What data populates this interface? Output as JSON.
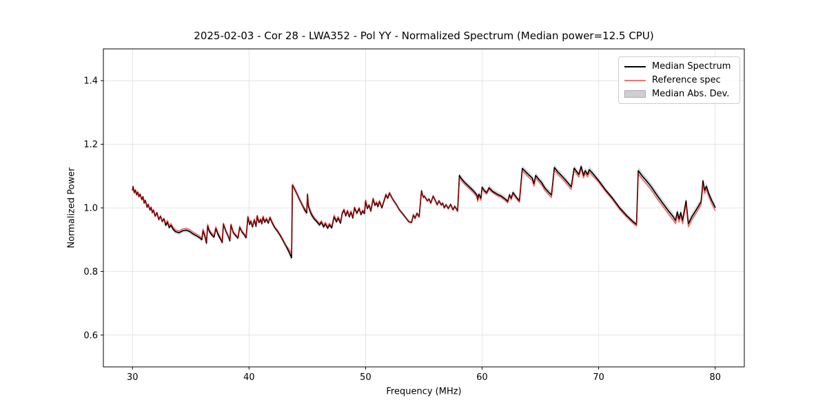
{
  "chart_data": {
    "type": "line",
    "title": "2025-02-03 - Cor 28 - LWA352 - Pol YY - Normalized Spectrum (Median power=12.5 CPU)",
    "xlabel": "Frequency (MHz)",
    "ylabel": "Normalized Power",
    "xlim": [
      27.5,
      82.5
    ],
    "ylim": [
      0.5,
      1.5
    ],
    "xticks": [
      30,
      40,
      50,
      60,
      70,
      80
    ],
    "yticks": [
      0.6,
      0.8,
      1.0,
      1.2,
      1.4
    ],
    "grid": true,
    "legend_position": "upper right",
    "colors": {
      "median_line": "#000000",
      "reference_line": "#ff0000",
      "reference_opacity": 0.55,
      "reference_legend": "#f4736f",
      "band_fill": "#aaaaaa",
      "band_opacity": 0.45,
      "band_legend": "#cfcfcf",
      "grid_line": "#e4e4e4",
      "spine": "#000000"
    },
    "series_meta": [
      {
        "name": "Median Spectrum",
        "kind": "line",
        "color": "#000000"
      },
      {
        "name": "Reference spec",
        "kind": "line",
        "color": "#f4736f"
      },
      {
        "name": "Median Abs. Dev.",
        "kind": "band",
        "color": "#cfcfcf"
      }
    ],
    "points_format": [
      "freq_mhz",
      "median_power",
      "reference_minus_median"
    ],
    "mad_halfwidth_default": 0.007,
    "mad_halfwidth_regions": [
      [
        43.4,
        45.4,
        0.011
      ],
      [
        58.0,
        63.4,
        0.009
      ],
      [
        63.4,
        69.6,
        0.01
      ],
      [
        69.6,
        73.3,
        0.008
      ],
      [
        73.3,
        80.0,
        0.012
      ]
    ],
    "points": [
      [
        30.0,
        1.056,
        0
      ],
      [
        30.05,
        1.067,
        0
      ],
      [
        30.15,
        1.048,
        0
      ],
      [
        30.25,
        1.056,
        0
      ],
      [
        30.35,
        1.041,
        0
      ],
      [
        30.45,
        1.05,
        0
      ],
      [
        30.55,
        1.035,
        0
      ],
      [
        30.65,
        1.043,
        0
      ],
      [
        30.8,
        1.026,
        0
      ],
      [
        30.9,
        1.035,
        0
      ],
      [
        31.0,
        1.015,
        0
      ],
      [
        31.1,
        1.024,
        0
      ],
      [
        31.25,
        1.002,
        0
      ],
      [
        31.35,
        1.011,
        0
      ],
      [
        31.5,
        0.993,
        0
      ],
      [
        31.6,
        1.002,
        0
      ],
      [
        31.7,
        0.985,
        0
      ],
      [
        31.8,
        0.993,
        0
      ],
      [
        31.95,
        0.974,
        0
      ],
      [
        32.1,
        0.985,
        0
      ],
      [
        32.25,
        0.963,
        0
      ],
      [
        32.4,
        0.974,
        0
      ],
      [
        32.55,
        0.957,
        0
      ],
      [
        32.7,
        0.966,
        0
      ],
      [
        32.85,
        0.945,
        0.006
      ],
      [
        33.0,
        0.955,
        0.006
      ],
      [
        33.15,
        0.938,
        0.006
      ],
      [
        33.3,
        0.945,
        0.006
      ],
      [
        33.5,
        0.932,
        0.006
      ],
      [
        33.7,
        0.925,
        0.006
      ],
      [
        34.0,
        0.922,
        0.006
      ],
      [
        34.3,
        0.928,
        0.006
      ],
      [
        34.6,
        0.93,
        0.006
      ],
      [
        34.9,
        0.926,
        0.006
      ],
      [
        35.2,
        0.918,
        0.006
      ],
      [
        35.5,
        0.912,
        0.006
      ],
      [
        35.8,
        0.905,
        0.006
      ],
      [
        35.95,
        0.9,
        0.006
      ],
      [
        36.05,
        0.928,
        0.006
      ],
      [
        36.2,
        0.912,
        0.006
      ],
      [
        36.35,
        0.889,
        0.006
      ],
      [
        36.45,
        0.943,
        0.006
      ],
      [
        36.6,
        0.925,
        0.006
      ],
      [
        36.8,
        0.915,
        0.006
      ],
      [
        37.0,
        0.908,
        0.006
      ],
      [
        37.15,
        0.935,
        0.006
      ],
      [
        37.35,
        0.915,
        0.006
      ],
      [
        37.55,
        0.902,
        0.006
      ],
      [
        37.7,
        0.891,
        0.003
      ],
      [
        37.8,
        0.949,
        0.003
      ],
      [
        38.0,
        0.928,
        0.003
      ],
      [
        38.2,
        0.912,
        0.003
      ],
      [
        38.35,
        0.896,
        0.003
      ],
      [
        38.45,
        0.946,
        0.003
      ],
      [
        38.65,
        0.922,
        0.003
      ],
      [
        38.85,
        0.913,
        0.003
      ],
      [
        39.05,
        0.905,
        0.003
      ],
      [
        39.2,
        0.939,
        0.003
      ],
      [
        39.4,
        0.924,
        0.003
      ],
      [
        39.6,
        0.915,
        0.003
      ],
      [
        39.75,
        0.906,
        0.003
      ],
      [
        39.9,
        0.971,
        0.003
      ],
      [
        40.05,
        0.948,
        0.003
      ],
      [
        40.15,
        0.958,
        0.003
      ],
      [
        40.3,
        0.94,
        0.003
      ],
      [
        40.45,
        0.962,
        0.003
      ],
      [
        40.6,
        0.942,
        0.003
      ],
      [
        40.7,
        0.974,
        0.003
      ],
      [
        40.85,
        0.954,
        0.003
      ],
      [
        41.0,
        0.963,
        0.003
      ],
      [
        41.1,
        0.95,
        0.003
      ],
      [
        41.2,
        0.971,
        0.003
      ],
      [
        41.35,
        0.955,
        0.003
      ],
      [
        41.5,
        0.965,
        0.003
      ],
      [
        41.65,
        0.952,
        0.003
      ],
      [
        41.8,
        0.969,
        0.003
      ],
      [
        42.0,
        0.952,
        0.003
      ],
      [
        42.2,
        0.938,
        0.003
      ],
      [
        42.45,
        0.926,
        0.003
      ],
      [
        42.7,
        0.912,
        0.003
      ],
      [
        42.95,
        0.895,
        0.003
      ],
      [
        43.2,
        0.878,
        0.003
      ],
      [
        43.45,
        0.86,
        0.01
      ],
      [
        43.65,
        0.843,
        0.012
      ],
      [
        43.72,
        1.072,
        0
      ],
      [
        43.9,
        1.06,
        0
      ],
      [
        44.1,
        1.045,
        0
      ],
      [
        44.35,
        1.025,
        0
      ],
      [
        44.6,
        1.007,
        0
      ],
      [
        44.8,
        0.992,
        0.005
      ],
      [
        44.95,
        0.984,
        0.005
      ],
      [
        45.02,
        1.043,
        0
      ],
      [
        45.1,
        1.005,
        0.005
      ],
      [
        45.25,
        0.988,
        0.005
      ],
      [
        45.4,
        0.976,
        0.005
      ],
      [
        45.6,
        0.965,
        0.005
      ],
      [
        45.85,
        0.955,
        0.005
      ],
      [
        46.05,
        0.946,
        0.005
      ],
      [
        46.2,
        0.955,
        0.005
      ],
      [
        46.4,
        0.94,
        0.005
      ],
      [
        46.55,
        0.95,
        0.005
      ],
      [
        46.75,
        0.936,
        0.005
      ],
      [
        46.9,
        0.947,
        0.005
      ],
      [
        47.1,
        0.937,
        0.005
      ],
      [
        47.3,
        0.972,
        0.005
      ],
      [
        47.5,
        0.956,
        0.005
      ],
      [
        47.65,
        0.968,
        0.005
      ],
      [
        47.85,
        0.952,
        0.005
      ],
      [
        48.0,
        0.983,
        0.003
      ],
      [
        48.15,
        0.993,
        0.003
      ],
      [
        48.3,
        0.975,
        0.003
      ],
      [
        48.45,
        0.99,
        0.003
      ],
      [
        48.6,
        0.972,
        0.003
      ],
      [
        48.75,
        0.987,
        0.003
      ],
      [
        48.9,
        0.968,
        0.003
      ],
      [
        49.05,
        1.0,
        0.003
      ],
      [
        49.25,
        0.983,
        0.003
      ],
      [
        49.45,
        0.998,
        0.003
      ],
      [
        49.6,
        0.979,
        0.003
      ],
      [
        49.75,
        0.99,
        0.003
      ],
      [
        49.9,
        0.982,
        0.003
      ],
      [
        50.0,
        1.022,
        0.003
      ],
      [
        50.15,
        0.998,
        0.003
      ],
      [
        50.3,
        1.008,
        0.003
      ],
      [
        50.45,
        0.99,
        0.003
      ],
      [
        50.65,
        1.028,
        0.003
      ],
      [
        50.8,
        1.008,
        0.003
      ],
      [
        50.95,
        1.016,
        0.003
      ],
      [
        51.05,
        1.004,
        0.003
      ],
      [
        51.2,
        1.02,
        0.003
      ],
      [
        51.4,
        1.0,
        0.003
      ],
      [
        51.75,
        1.041,
        0.003
      ],
      [
        51.9,
        1.03,
        0.003
      ],
      [
        52.05,
        1.046,
        0.003
      ],
      [
        52.35,
        1.026,
        0
      ],
      [
        52.65,
        1.01,
        0
      ],
      [
        52.9,
        0.994,
        0
      ],
      [
        53.3,
        0.976,
        0
      ],
      [
        53.7,
        0.957,
        0
      ],
      [
        53.95,
        0.954,
        0
      ],
      [
        54.1,
        0.978,
        0
      ],
      [
        54.25,
        0.967,
        0
      ],
      [
        54.4,
        0.983,
        0
      ],
      [
        54.6,
        0.972,
        0
      ],
      [
        54.8,
        1.054,
        0
      ],
      [
        54.95,
        1.033,
        0
      ],
      [
        55.05,
        1.037,
        0
      ],
      [
        55.3,
        1.022,
        0
      ],
      [
        55.45,
        1.028,
        0
      ],
      [
        55.6,
        1.015,
        0
      ],
      [
        55.8,
        1.037,
        0
      ],
      [
        56.0,
        1.022,
        0
      ],
      [
        56.15,
        1.01,
        0
      ],
      [
        56.3,
        1.022,
        0
      ],
      [
        56.5,
        1.009,
        0
      ],
      [
        56.62,
        1.015,
        0
      ],
      [
        56.75,
        1.0,
        0
      ],
      [
        56.9,
        1.01,
        0
      ],
      [
        57.1,
        0.998,
        0
      ],
      [
        57.3,
        1.011,
        0
      ],
      [
        57.5,
        0.994,
        0
      ],
      [
        57.65,
        1.005,
        0
      ],
      [
        57.9,
        0.99,
        0
      ],
      [
        58.05,
        1.102,
        -0.006
      ],
      [
        58.2,
        1.093,
        -0.006
      ],
      [
        58.5,
        1.08,
        -0.006
      ],
      [
        59.0,
        1.063,
        -0.006
      ],
      [
        59.3,
        1.052,
        -0.006
      ],
      [
        59.55,
        1.041,
        -0.006
      ],
      [
        59.62,
        1.026,
        -0.006
      ],
      [
        59.72,
        1.043,
        -0.006
      ],
      [
        59.9,
        1.03,
        -0.006
      ],
      [
        60.0,
        1.065,
        -0.004
      ],
      [
        60.2,
        1.054,
        -0.004
      ],
      [
        60.4,
        1.048,
        -0.004
      ],
      [
        60.6,
        1.063,
        -0.004
      ],
      [
        60.9,
        1.052,
        -0.004
      ],
      [
        61.3,
        1.043,
        -0.004
      ],
      [
        61.65,
        1.037,
        -0.004
      ],
      [
        62.05,
        1.026,
        -0.004
      ],
      [
        62.2,
        1.02,
        -0.004
      ],
      [
        62.35,
        1.041,
        -0.004
      ],
      [
        62.5,
        1.03,
        -0.004
      ],
      [
        62.65,
        1.048,
        -0.004
      ],
      [
        62.95,
        1.033,
        -0.004
      ],
      [
        63.2,
        1.022,
        -0.004
      ],
      [
        63.45,
        1.124,
        -0.008
      ],
      [
        63.7,
        1.115,
        -0.008
      ],
      [
        64.0,
        1.104,
        -0.008
      ],
      [
        64.3,
        1.094,
        -0.008
      ],
      [
        64.45,
        1.076,
        -0.008
      ],
      [
        64.6,
        1.102,
        -0.008
      ],
      [
        64.85,
        1.09,
        -0.008
      ],
      [
        65.1,
        1.08,
        -0.008
      ],
      [
        65.4,
        1.062,
        -0.008
      ],
      [
        65.7,
        1.05,
        -0.008
      ],
      [
        65.95,
        1.04,
        -0.008
      ],
      [
        66.2,
        1.127,
        -0.008
      ],
      [
        66.5,
        1.113,
        -0.008
      ],
      [
        66.8,
        1.102,
        -0.008
      ],
      [
        67.1,
        1.09,
        -0.008
      ],
      [
        67.4,
        1.077,
        -0.008
      ],
      [
        67.65,
        1.066,
        -0.008
      ],
      [
        67.9,
        1.125,
        -0.008
      ],
      [
        68.1,
        1.115,
        -0.008
      ],
      [
        68.3,
        1.105,
        -0.008
      ],
      [
        68.5,
        1.13,
        -0.008
      ],
      [
        68.7,
        1.102,
        -0.008
      ],
      [
        68.85,
        1.117,
        -0.008
      ],
      [
        69.05,
        1.105,
        -0.008
      ],
      [
        69.2,
        1.12,
        -0.008
      ],
      [
        69.5,
        1.108,
        -0.008
      ],
      [
        70.0,
        1.086,
        -0.005
      ],
      [
        70.6,
        1.056,
        -0.005
      ],
      [
        71.2,
        1.03,
        -0.005
      ],
      [
        71.8,
        1.0,
        -0.005
      ],
      [
        72.4,
        0.976,
        -0.005
      ],
      [
        73.0,
        0.955,
        -0.005
      ],
      [
        73.25,
        0.948,
        -0.005
      ],
      [
        73.4,
        1.117,
        -0.01
      ],
      [
        73.7,
        1.102,
        -0.01
      ],
      [
        74.1,
        1.085,
        -0.01
      ],
      [
        74.5,
        1.067,
        -0.01
      ],
      [
        75.0,
        1.04,
        -0.01
      ],
      [
        75.5,
        1.015,
        -0.01
      ],
      [
        76.0,
        0.99,
        -0.01
      ],
      [
        76.4,
        0.972,
        -0.01
      ],
      [
        76.6,
        0.96,
        -0.01
      ],
      [
        76.75,
        0.987,
        -0.01
      ],
      [
        76.9,
        0.965,
        -0.01
      ],
      [
        77.05,
        0.985,
        -0.01
      ],
      [
        77.2,
        0.96,
        -0.01
      ],
      [
        77.5,
        1.022,
        -0.01
      ],
      [
        77.7,
        0.95,
        -0.01
      ],
      [
        78.0,
        0.972,
        -0.01
      ],
      [
        78.4,
        0.995,
        -0.01
      ],
      [
        78.8,
        1.02,
        -0.01
      ],
      [
        78.95,
        1.085,
        -0.01
      ],
      [
        79.1,
        1.055,
        -0.01
      ],
      [
        79.25,
        1.068,
        -0.01
      ],
      [
        79.45,
        1.045,
        -0.01
      ],
      [
        79.7,
        1.023,
        -0.01
      ],
      [
        80.0,
        1.002,
        -0.01
      ]
    ]
  }
}
